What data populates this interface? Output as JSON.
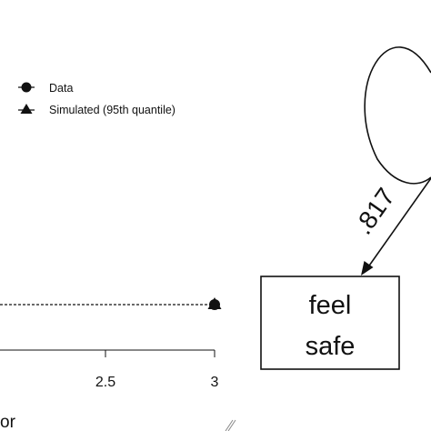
{
  "legend": {
    "entries": [
      {
        "label": "Data",
        "marker": "circle"
      },
      {
        "label": "Simulated (95th quantile)",
        "marker": "triangle"
      }
    ]
  },
  "chart_data": {
    "type": "line",
    "x_tick_labels": [
      "2.5",
      "3"
    ],
    "xlabel_fragment": "or",
    "series": [
      {
        "name": "Data",
        "x": [
          3
        ],
        "y": [
          0
        ]
      },
      {
        "name": "Simulated (95th quantile)",
        "x": [
          3
        ],
        "y": [
          0
        ]
      }
    ]
  },
  "path_diagram": {
    "coefficient": ".817",
    "box_label_line1": "feel",
    "box_label_line2": "safe"
  },
  "colors": {
    "ink": "#111111",
    "background": "#ffffff"
  }
}
